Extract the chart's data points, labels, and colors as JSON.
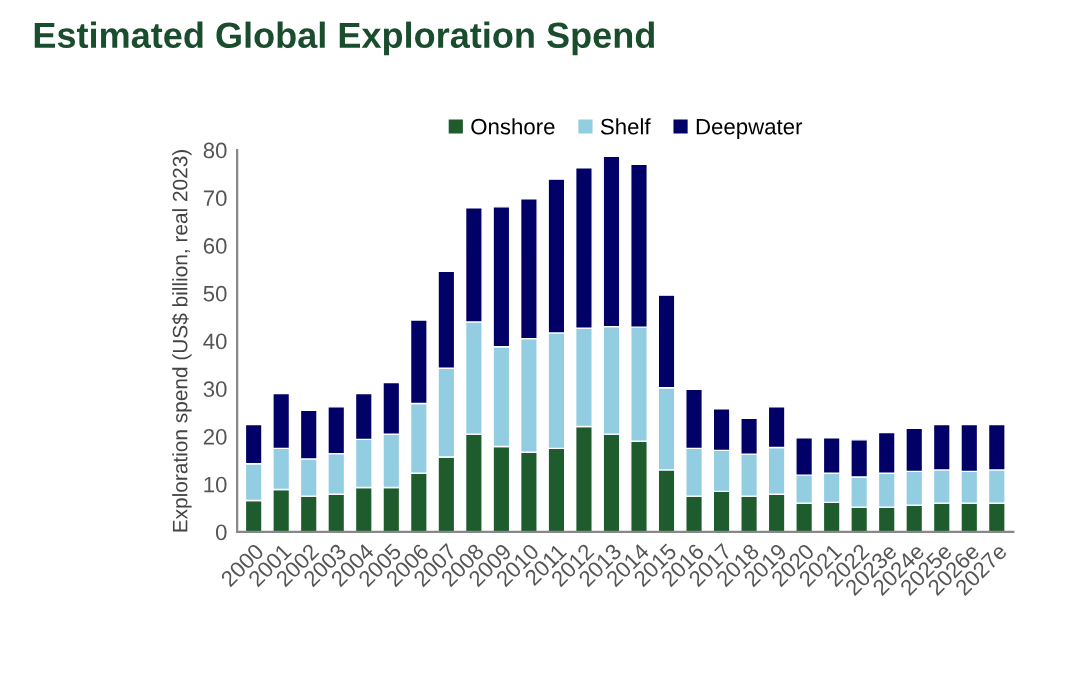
{
  "chart_data": {
    "type": "bar",
    "stacked": true,
    "title": "Estimated Global Exploration Spend",
    "ylabel": "Exploration spend (US$ billion, real 2023)",
    "categories": [
      "2000",
      "2001",
      "2002",
      "2003",
      "2004",
      "2005",
      "2006",
      "2007",
      "2008",
      "2009",
      "2010",
      "2011",
      "2012",
      "2013",
      "2014",
      "2015",
      "2016",
      "2017",
      "2018",
      "2019",
      "2020",
      "2021",
      "2022",
      "2023e",
      "2024e",
      "2025e",
      "2026e",
      "2027e"
    ],
    "series": [
      {
        "name": "Onshore",
        "color": "#1e5c2e",
        "values": [
          6.6,
          8.9,
          7.5,
          7.9,
          9.3,
          9.3,
          12.3,
          15.7,
          20.5,
          17.9,
          16.7,
          17.5,
          22.1,
          20.5,
          19,
          13,
          7.5,
          8.5,
          7.5,
          7.9,
          6,
          6.2,
          5.2,
          5.2,
          5.6,
          6,
          6,
          6
        ]
      },
      {
        "name": "Shelf",
        "color": "#92cde1",
        "values": [
          7.7,
          8.6,
          7.8,
          8.5,
          10.1,
          11.2,
          14.6,
          18.6,
          23.5,
          20.9,
          23.8,
          24.2,
          20.6,
          22.5,
          23.9,
          17.2,
          10,
          8.6,
          8.8,
          9.8,
          5.9,
          6.1,
          6.3,
          7.1,
          7.1,
          7,
          6.7,
          7
        ]
      },
      {
        "name": "Deepwater",
        "color": "#000066",
        "values": [
          8.2,
          11.5,
          10.2,
          9.8,
          9.6,
          10.8,
          17.5,
          20.3,
          23.9,
          29.3,
          29.3,
          32.2,
          33.6,
          35.7,
          34.1,
          19.4,
          12.4,
          8.7,
          7.5,
          8.5,
          7.8,
          7.4,
          7.8,
          8.5,
          9,
          9.5,
          9.8,
          9.5
        ]
      }
    ],
    "ylim": [
      0,
      80
    ],
    "yticks": [
      0,
      10,
      20,
      30,
      40,
      50,
      60,
      70,
      80
    ],
    "grid": false,
    "legend": "top"
  }
}
